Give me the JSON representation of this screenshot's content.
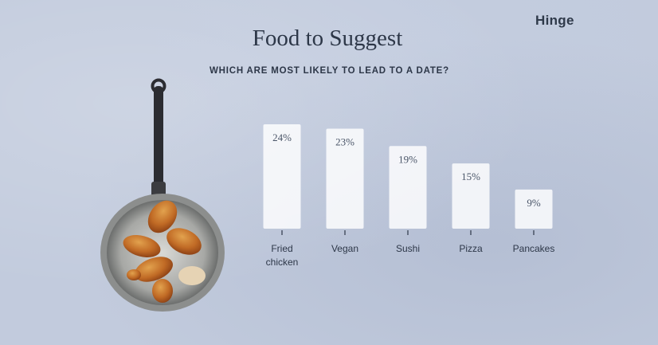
{
  "brand": "Hinge",
  "chart_data": {
    "type": "bar",
    "title": "Food to Suggest",
    "subtitle": "WHICH ARE MOST LIKELY TO LEAD TO A DATE?",
    "categories": [
      [
        "Fried",
        "chicken"
      ],
      [
        "Vegan"
      ],
      [
        "Sushi"
      ],
      [
        "Pizza"
      ],
      [
        "Pancakes"
      ]
    ],
    "values": [
      24,
      23,
      19,
      15,
      9
    ],
    "value_labels": [
      "24%",
      "23%",
      "19%",
      "15%",
      "9%"
    ],
    "ylim": [
      0,
      24
    ],
    "bar_color": "#ffffff",
    "background_color": "#c2cbdd"
  }
}
